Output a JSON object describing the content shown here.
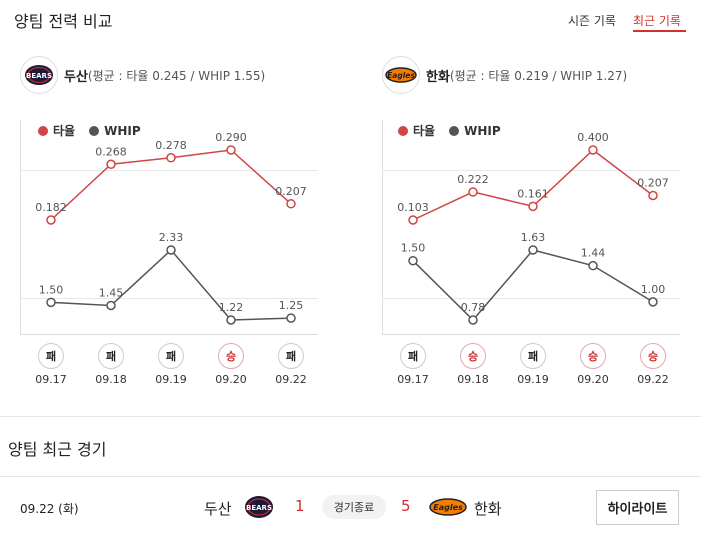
{
  "header": {
    "title": "양팀 전력 비교",
    "tabs": [
      {
        "label": "시즌 기록",
        "active": false
      },
      {
        "label": "최근 기록",
        "active": true
      }
    ]
  },
  "colors": {
    "accent": "#d32f2f",
    "avg_line": "#d04545",
    "whip_line": "#555555"
  },
  "teams": [
    {
      "name": "두산",
      "stats": "(평균 : 타율 0.245 / WHIP 1.55)",
      "logo_icon": "bears-logo-icon",
      "logo_text": "BEARS"
    },
    {
      "name": "한화",
      "stats": "(평균 : 타율 0.219 / WHIP 1.27)",
      "logo_icon": "eagles-logo-icon",
      "logo_text": "Eagles"
    }
  ],
  "legend": {
    "avg": "타율",
    "whip": "WHIP"
  },
  "chart_data": [
    {
      "type": "line",
      "team": "두산",
      "categories": [
        "09.17",
        "09.18",
        "09.19",
        "09.20",
        "09.22"
      ],
      "series": [
        {
          "name": "타율",
          "values": [
            0.182,
            0.268,
            0.278,
            0.29,
            0.207
          ],
          "labels": [
            "0.182",
            "0.268",
            "0.278",
            "0.290",
            "0.207"
          ]
        },
        {
          "name": "WHIP",
          "values": [
            1.5,
            1.45,
            2.33,
            1.22,
            1.25
          ],
          "labels": [
            "1.50",
            "1.45",
            "2.33",
            "1.22",
            "1.25"
          ]
        }
      ],
      "results": [
        "패",
        "패",
        "패",
        "승",
        "패"
      ]
    },
    {
      "type": "line",
      "team": "한화",
      "categories": [
        "09.17",
        "09.18",
        "09.19",
        "09.20",
        "09.22"
      ],
      "series": [
        {
          "name": "타율",
          "values": [
            0.103,
            0.222,
            0.161,
            0.4,
            0.207
          ],
          "labels": [
            "0.103",
            "0.222",
            "0.161",
            "0.400",
            "0.207"
          ]
        },
        {
          "name": "WHIP",
          "values": [
            1.5,
            0.78,
            1.63,
            1.44,
            1.0
          ],
          "labels": [
            "1.50",
            "0.78",
            "1.63",
            "1.44",
            "1.00"
          ]
        }
      ],
      "results": [
        "패",
        "승",
        "패",
        "승",
        "승"
      ]
    }
  ],
  "win_label": "승",
  "recent": {
    "title": "양팀 최근 경기",
    "games": [
      {
        "date": "09.22 (화)",
        "home_team": "두산",
        "home_score": "1",
        "status": "경기종료",
        "away_score": "5",
        "away_team": "한화",
        "highlight_label": "하이라이트"
      }
    ]
  }
}
